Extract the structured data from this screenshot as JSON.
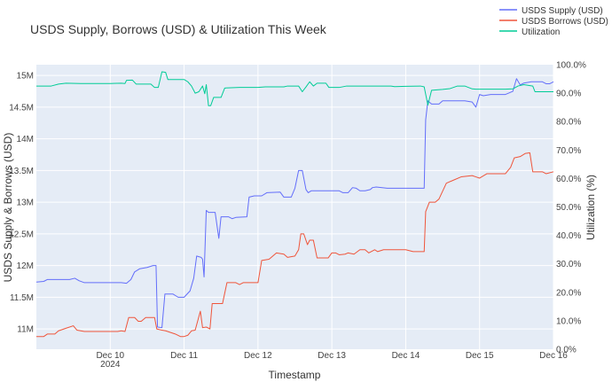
{
  "chart_data": {
    "type": "line",
    "title": "USDS Supply, Borrows (USD) & Utilization This Week",
    "xlabel": "Timestamp",
    "ylabel": "USDS Supply & Borrows (USD)",
    "y2label": "Utilization (%)",
    "x_ticks": [
      {
        "day": 10,
        "label": "Dec 10",
        "sublabel": "2024"
      },
      {
        "day": 11,
        "label": "Dec 11",
        "sublabel": ""
      },
      {
        "day": 12,
        "label": "Dec 12",
        "sublabel": ""
      },
      {
        "day": 13,
        "label": "Dec 13",
        "sublabel": ""
      },
      {
        "day": 14,
        "label": "Dec 14",
        "sublabel": ""
      },
      {
        "day": 15,
        "label": "Dec 15",
        "sublabel": ""
      },
      {
        "day": 16,
        "label": "Dec 16",
        "sublabel": ""
      }
    ],
    "xlim": [
      9.0,
      16.0
    ],
    "y_ticks": [
      {
        "value": 11.0,
        "label": "11M"
      },
      {
        "value": 11.5,
        "label": "11.5M"
      },
      {
        "value": 12.0,
        "label": "12M"
      },
      {
        "value": 12.5,
        "label": "12.5M"
      },
      {
        "value": 13.0,
        "label": "13M"
      },
      {
        "value": 13.5,
        "label": "13.5M"
      },
      {
        "value": 14.0,
        "label": "14M"
      },
      {
        "value": 14.5,
        "label": "14.5M"
      },
      {
        "value": 15.0,
        "label": "15M"
      }
    ],
    "ylim": [
      10.68,
      15.17
    ],
    "y2_ticks": [
      {
        "value": 0,
        "label": "0.0%"
      },
      {
        "value": 10,
        "label": "10.0%"
      },
      {
        "value": 20,
        "label": "20.0%"
      },
      {
        "value": 30,
        "label": "30.0%"
      },
      {
        "value": 40,
        "label": "40.0%"
      },
      {
        "value": 50,
        "label": "50.0%"
      },
      {
        "value": 60,
        "label": "60.0%"
      },
      {
        "value": 70,
        "label": "70.0%"
      },
      {
        "value": 80,
        "label": "80.0%"
      },
      {
        "value": 90,
        "label": "90.0%"
      },
      {
        "value": 100,
        "label": "100.0%"
      }
    ],
    "y2lim": [
      0,
      100
    ],
    "grid": true,
    "legend_position": "top-right",
    "plot_bg": "#e5ecf6",
    "series": [
      {
        "name": "USDS Supply (USD)",
        "axis": "left",
        "color": "#636efa",
        "points": [
          [
            9.0,
            11.74
          ],
          [
            9.1,
            11.75
          ],
          [
            9.15,
            11.78
          ],
          [
            9.3,
            11.78
          ],
          [
            9.45,
            11.78
          ],
          [
            9.52,
            11.8
          ],
          [
            9.58,
            11.76
          ],
          [
            9.65,
            11.73
          ],
          [
            9.8,
            11.73
          ],
          [
            10.0,
            11.73
          ],
          [
            10.15,
            11.73
          ],
          [
            10.22,
            11.72
          ],
          [
            10.28,
            11.78
          ],
          [
            10.33,
            11.9
          ],
          [
            10.4,
            11.95
          ],
          [
            10.5,
            11.97
          ],
          [
            10.58,
            12.0
          ],
          [
            10.62,
            12.0
          ],
          [
            10.64,
            11.03
          ],
          [
            10.7,
            11.02
          ],
          [
            10.74,
            11.55
          ],
          [
            10.85,
            11.55
          ],
          [
            10.92,
            11.5
          ],
          [
            11.0,
            11.5
          ],
          [
            11.08,
            11.6
          ],
          [
            11.13,
            11.8
          ],
          [
            11.17,
            12.15
          ],
          [
            11.23,
            12.13
          ],
          [
            11.25,
            12.1
          ],
          [
            11.27,
            11.82
          ],
          [
            11.3,
            12.87
          ],
          [
            11.33,
            12.84
          ],
          [
            11.42,
            12.84
          ],
          [
            11.47,
            12.43
          ],
          [
            11.5,
            12.77
          ],
          [
            11.6,
            12.77
          ],
          [
            11.65,
            12.74
          ],
          [
            11.7,
            12.76
          ],
          [
            11.85,
            12.77
          ],
          [
            11.88,
            13.08
          ],
          [
            11.95,
            13.1
          ],
          [
            12.05,
            13.1
          ],
          [
            12.12,
            13.15
          ],
          [
            12.3,
            13.16
          ],
          [
            12.35,
            13.08
          ],
          [
            12.45,
            13.08
          ],
          [
            12.5,
            13.22
          ],
          [
            12.55,
            13.5
          ],
          [
            12.6,
            13.5
          ],
          [
            12.65,
            13.2
          ],
          [
            12.68,
            13.15
          ],
          [
            12.72,
            13.18
          ],
          [
            12.8,
            13.18
          ],
          [
            13.0,
            13.18
          ],
          [
            13.1,
            13.18
          ],
          [
            13.15,
            13.15
          ],
          [
            13.22,
            13.15
          ],
          [
            13.28,
            13.23
          ],
          [
            13.33,
            13.22
          ],
          [
            13.38,
            13.18
          ],
          [
            13.45,
            13.18
          ],
          [
            13.52,
            13.2
          ],
          [
            13.55,
            13.23
          ],
          [
            13.6,
            13.24
          ],
          [
            13.75,
            13.22
          ],
          [
            13.85,
            13.22
          ],
          [
            14.0,
            13.22
          ],
          [
            14.1,
            13.22
          ],
          [
            14.2,
            13.22
          ],
          [
            14.25,
            13.22
          ],
          [
            14.27,
            14.3
          ],
          [
            14.3,
            14.6
          ],
          [
            14.35,
            14.55
          ],
          [
            14.45,
            14.55
          ],
          [
            14.5,
            14.6
          ],
          [
            14.6,
            14.6
          ],
          [
            14.8,
            14.6
          ],
          [
            14.9,
            14.58
          ],
          [
            14.95,
            14.5
          ],
          [
            15.0,
            14.7
          ],
          [
            15.05,
            14.68
          ],
          [
            15.15,
            14.7
          ],
          [
            15.35,
            14.7
          ],
          [
            15.45,
            14.75
          ],
          [
            15.5,
            14.95
          ],
          [
            15.55,
            14.85
          ],
          [
            15.6,
            14.88
          ],
          [
            15.7,
            14.9
          ],
          [
            15.85,
            14.9
          ],
          [
            15.9,
            14.87
          ],
          [
            15.95,
            14.87
          ],
          [
            16.0,
            14.9
          ]
        ]
      },
      {
        "name": "USDS Borrows (USD)",
        "axis": "left",
        "color": "#ef553b",
        "points": [
          [
            9.0,
            10.88
          ],
          [
            9.1,
            10.88
          ],
          [
            9.15,
            10.92
          ],
          [
            9.25,
            10.92
          ],
          [
            9.3,
            10.97
          ],
          [
            9.4,
            11.01
          ],
          [
            9.5,
            11.05
          ],
          [
            9.55,
            10.98
          ],
          [
            9.65,
            10.96
          ],
          [
            9.8,
            10.96
          ],
          [
            10.0,
            10.96
          ],
          [
            10.1,
            10.96
          ],
          [
            10.15,
            10.97
          ],
          [
            10.2,
            10.96
          ],
          [
            10.25,
            11.18
          ],
          [
            10.33,
            11.18
          ],
          [
            10.38,
            11.12
          ],
          [
            10.42,
            11.12
          ],
          [
            10.48,
            11.18
          ],
          [
            10.6,
            11.18
          ],
          [
            10.63,
            11.0
          ],
          [
            10.7,
            10.98
          ],
          [
            10.75,
            10.97
          ],
          [
            10.88,
            10.92
          ],
          [
            10.95,
            10.88
          ],
          [
            11.0,
            10.88
          ],
          [
            11.05,
            10.9
          ],
          [
            11.1,
            10.97
          ],
          [
            11.15,
            10.98
          ],
          [
            11.22,
            11.28
          ],
          [
            11.25,
            11.02
          ],
          [
            11.3,
            11.03
          ],
          [
            11.35,
            11.0
          ],
          [
            11.38,
            11.4
          ],
          [
            11.45,
            11.4
          ],
          [
            11.52,
            11.4
          ],
          [
            11.58,
            11.73
          ],
          [
            11.7,
            11.73
          ],
          [
            11.75,
            11.7
          ],
          [
            11.8,
            11.73
          ],
          [
            11.9,
            11.73
          ],
          [
            12.0,
            11.73
          ],
          [
            12.05,
            12.08
          ],
          [
            12.15,
            12.1
          ],
          [
            12.25,
            12.2
          ],
          [
            12.35,
            12.18
          ],
          [
            12.4,
            12.13
          ],
          [
            12.5,
            12.15
          ],
          [
            12.55,
            12.25
          ],
          [
            12.58,
            12.5
          ],
          [
            12.62,
            12.5
          ],
          [
            12.67,
            12.33
          ],
          [
            12.7,
            12.4
          ],
          [
            12.75,
            12.4
          ],
          [
            12.8,
            12.12
          ],
          [
            12.95,
            12.12
          ],
          [
            13.0,
            12.2
          ],
          [
            13.05,
            12.2
          ],
          [
            13.1,
            12.17
          ],
          [
            13.18,
            12.18
          ],
          [
            13.22,
            12.2
          ],
          [
            13.3,
            12.18
          ],
          [
            13.38,
            12.25
          ],
          [
            13.45,
            12.25
          ],
          [
            13.5,
            12.2
          ],
          [
            13.58,
            12.25
          ],
          [
            13.62,
            12.22
          ],
          [
            13.7,
            12.25
          ],
          [
            14.0,
            12.25
          ],
          [
            14.1,
            12.22
          ],
          [
            14.15,
            12.22
          ],
          [
            14.25,
            12.22
          ],
          [
            14.27,
            12.85
          ],
          [
            14.32,
            13.0
          ],
          [
            14.4,
            13.0
          ],
          [
            14.45,
            13.05
          ],
          [
            14.55,
            13.3
          ],
          [
            14.65,
            13.35
          ],
          [
            14.75,
            13.4
          ],
          [
            14.9,
            13.42
          ],
          [
            14.95,
            13.4
          ],
          [
            15.0,
            13.38
          ],
          [
            15.1,
            13.45
          ],
          [
            15.35,
            13.45
          ],
          [
            15.42,
            13.55
          ],
          [
            15.47,
            13.7
          ],
          [
            15.55,
            13.72
          ],
          [
            15.62,
            13.77
          ],
          [
            15.68,
            13.78
          ],
          [
            15.72,
            13.48
          ],
          [
            15.85,
            13.48
          ],
          [
            15.9,
            13.45
          ],
          [
            16.0,
            13.48
          ]
        ]
      },
      {
        "name": "Utilization",
        "axis": "right",
        "color": "#00cc96",
        "points": [
          [
            9.0,
            92.5
          ],
          [
            9.15,
            92.5
          ],
          [
            9.2,
            92.5
          ],
          [
            9.3,
            93.2
          ],
          [
            9.4,
            93.5
          ],
          [
            9.6,
            93.4
          ],
          [
            9.8,
            93.4
          ],
          [
            10.0,
            93.4
          ],
          [
            10.15,
            93.5
          ],
          [
            10.2,
            93.4
          ],
          [
            10.22,
            94.5
          ],
          [
            10.3,
            94.6
          ],
          [
            10.35,
            93.2
          ],
          [
            10.5,
            93.2
          ],
          [
            10.55,
            93.2
          ],
          [
            10.6,
            92.0
          ],
          [
            10.65,
            92.0
          ],
          [
            10.7,
            97.5
          ],
          [
            10.75,
            97.3
          ],
          [
            10.78,
            94.8
          ],
          [
            10.85,
            94.8
          ],
          [
            11.0,
            94.8
          ],
          [
            11.05,
            94.0
          ],
          [
            11.1,
            92.5
          ],
          [
            11.15,
            90.0
          ],
          [
            11.2,
            90.5
          ],
          [
            11.25,
            92.5
          ],
          [
            11.28,
            89.8
          ],
          [
            11.3,
            93.0
          ],
          [
            11.33,
            85.6
          ],
          [
            11.36,
            85.6
          ],
          [
            11.4,
            88.5
          ],
          [
            11.5,
            88.5
          ],
          [
            11.55,
            91.8
          ],
          [
            11.75,
            92.0
          ],
          [
            12.0,
            92.0
          ],
          [
            12.1,
            92.2
          ],
          [
            12.35,
            92.2
          ],
          [
            12.4,
            92.5
          ],
          [
            12.55,
            92.5
          ],
          [
            12.6,
            90.5
          ],
          [
            12.65,
            92.2
          ],
          [
            12.7,
            94.0
          ],
          [
            12.75,
            92.5
          ],
          [
            12.8,
            93.5
          ],
          [
            12.92,
            93.5
          ],
          [
            12.96,
            92.0
          ],
          [
            13.1,
            92.0
          ],
          [
            13.2,
            92.5
          ],
          [
            13.45,
            92.5
          ],
          [
            13.8,
            92.5
          ],
          [
            13.85,
            92.3
          ],
          [
            14.0,
            92.4
          ],
          [
            14.2,
            92.5
          ],
          [
            14.25,
            92.2
          ],
          [
            14.3,
            85.8
          ],
          [
            14.35,
            91.0
          ],
          [
            14.5,
            91.3
          ],
          [
            14.6,
            91.6
          ],
          [
            14.7,
            92.5
          ],
          [
            14.8,
            92.5
          ],
          [
            14.9,
            91.5
          ],
          [
            14.95,
            91.4
          ],
          [
            15.1,
            91.4
          ],
          [
            15.35,
            91.4
          ],
          [
            15.45,
            91.5
          ],
          [
            15.52,
            92.5
          ],
          [
            15.6,
            93.0
          ],
          [
            15.72,
            92.5
          ],
          [
            15.75,
            90.5
          ],
          [
            15.85,
            90.5
          ],
          [
            16.0,
            90.5
          ]
        ]
      }
    ]
  }
}
